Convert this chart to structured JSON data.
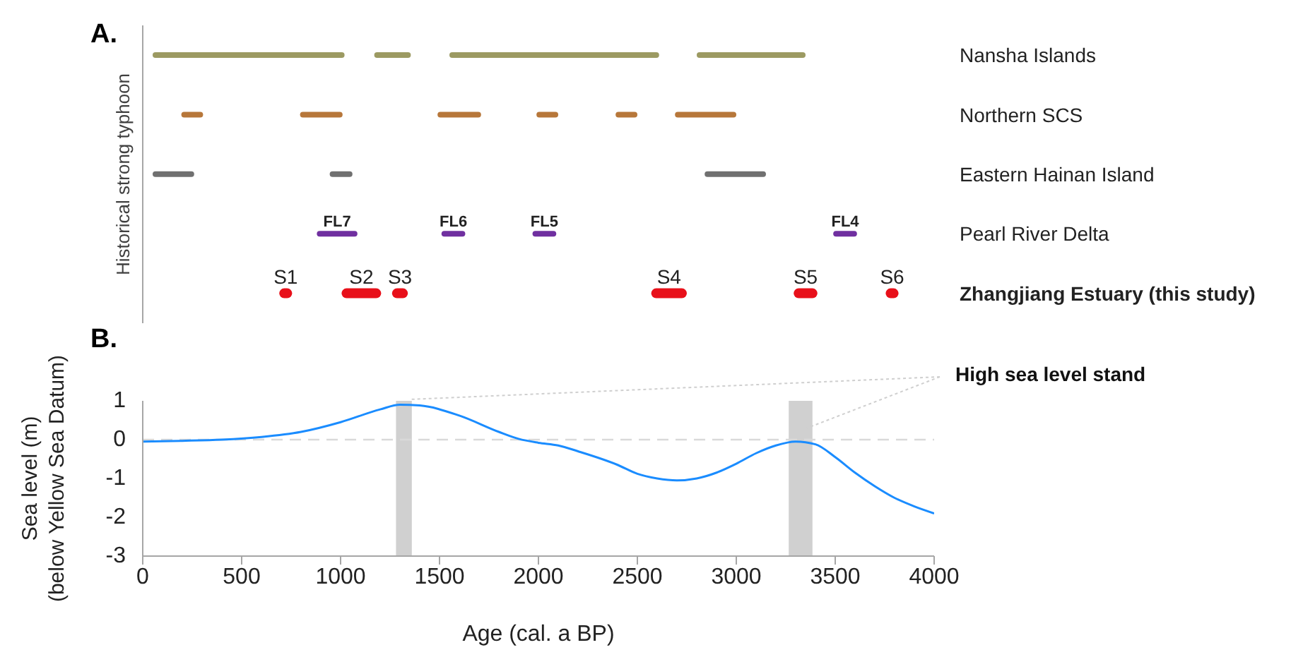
{
  "chart_data": [
    {
      "type": "bar",
      "title": "A.",
      "orientation": "horizontal",
      "ylabel": "Historical strong typhoon",
      "categories": [
        "Nansha Islands",
        "Northern SCS",
        "Eastern Hainan Island",
        "Pearl River Delta",
        "Zhangjiang Estuary (this study)"
      ],
      "xlim": [
        0,
        4000
      ],
      "tick_labels": "y",
      "grid": false,
      "legend": false,
      "series": [
        {
          "base": [
            50,
            195,
            50,
            880,
            690
          ],
          "values": [
            970,
            110,
            210,
            205,
            65
          ],
          "colors": [
            "#9c9a62",
            "#b7773a",
            "#707070",
            "#7030a0",
            "#e8101a"
          ],
          "value_labels": [
            null,
            null,
            null,
            "FL7",
            "S1"
          ]
        },
        {
          "base": [
            1170,
            795,
            945,
            1510,
            1005
          ],
          "values": [
            185,
            215,
            115,
            120,
            200
          ],
          "colors": [
            "#9c9a62",
            "#b7773a",
            "#707070",
            "#7030a0",
            "#e8101a"
          ],
          "value_labels": [
            null,
            null,
            null,
            "FL6",
            "S2"
          ]
        },
        {
          "base": [
            1550,
            1490,
            2840,
            1970,
            1260
          ],
          "values": [
            1060,
            220,
            310,
            120,
            80
          ],
          "colors": [
            "#9c9a62",
            "#b7773a",
            "#707070",
            "#7030a0",
            "#e8101a"
          ],
          "value_labels": [
            null,
            null,
            null,
            "FL5",
            "S3"
          ]
        },
        {
          "base": [
            2800,
            1990,
            null,
            3490,
            2570
          ],
          "values": [
            550,
            110,
            null,
            120,
            180
          ],
          "colors": [
            "#9c9a62",
            "#b7773a",
            "#707070",
            "#7030a0",
            "#e8101a"
          ],
          "value_labels": [
            null,
            null,
            null,
            "FL4",
            "S4"
          ]
        },
        {
          "base": [
            null,
            2390,
            null,
            null,
            3290
          ],
          "values": [
            null,
            110,
            null,
            null,
            120
          ],
          "colors": [
            "#9c9a62",
            "#b7773a",
            "#707070",
            "#7030a0",
            "#e8101a"
          ],
          "value_labels": [
            null,
            null,
            null,
            null,
            "S5"
          ]
        },
        {
          "base": [
            null,
            2690,
            null,
            null,
            3755
          ],
          "values": [
            null,
            310,
            null,
            null,
            65
          ],
          "colors": [
            "#9c9a62",
            "#b7773a",
            "#707070",
            "#7030a0",
            "#e8101a"
          ],
          "value_labels": [
            null,
            null,
            null,
            null,
            "S6"
          ]
        }
      ]
    },
    {
      "type": "line",
      "title": "B.",
      "xlabel": "Age (cal. a BP)",
      "ylabel": "Sea level (m)\n(below Yellow Sea Datum)",
      "xlim": [
        0,
        4000
      ],
      "xticks": [
        0,
        500,
        1000,
        1500,
        2000,
        2500,
        3000,
        3500,
        4000
      ],
      "ylim": [
        -3,
        1
      ],
      "yticks": [
        -3,
        -2,
        -1,
        0,
        1
      ],
      "grid": false,
      "legend": false,
      "marker": "none",
      "line_style": "solid",
      "ref_lines": [
        {
          "axis": "y",
          "value": 0,
          "color": "#d9d9d9",
          "line_style": "dashed"
        }
      ],
      "bands": [
        {
          "axis": "x",
          "from": 1280,
          "to": 1360,
          "color": "#d0d0d0"
        },
        {
          "axis": "x",
          "from": 3265,
          "to": 3385,
          "color": "#d0d0d0"
        }
      ],
      "annotations": [
        "High sea level stand"
      ],
      "series": [
        {
          "color": "#1a8cff",
          "x": [
            0,
            200,
            400,
            600,
            800,
            1000,
            1200,
            1300,
            1400,
            1600,
            1800,
            1900,
            2000,
            2100,
            2200,
            2400,
            2500,
            2600,
            2700,
            2800,
            2900,
            3000,
            3100,
            3200,
            3300,
            3400,
            3500,
            3600,
            3700,
            3800,
            3900,
            4000
          ],
          "values": [
            -0.05,
            -0.03,
            0.0,
            0.07,
            0.2,
            0.45,
            0.78,
            0.9,
            0.88,
            0.62,
            0.2,
            0.02,
            -0.08,
            -0.15,
            -0.3,
            -0.65,
            -0.88,
            -1.0,
            -1.05,
            -1.0,
            -0.85,
            -0.62,
            -0.35,
            -0.15,
            -0.05,
            -0.12,
            -0.45,
            -0.85,
            -1.2,
            -1.5,
            -1.72,
            -1.9
          ]
        }
      ]
    }
  ]
}
